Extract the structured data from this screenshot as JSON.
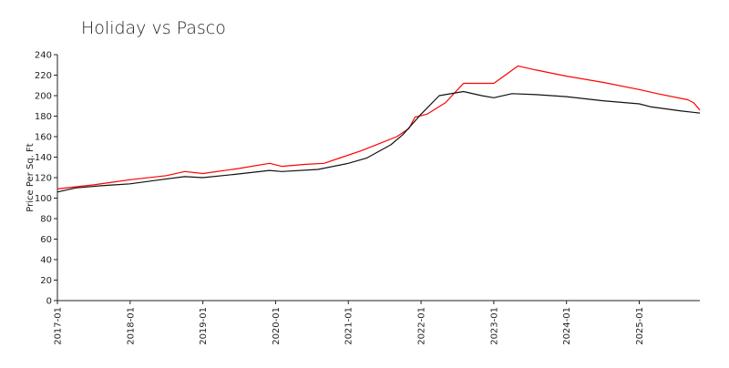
{
  "chart_data": {
    "type": "line",
    "title": "Holiday vs Pasco",
    "xlabel": "",
    "ylabel": "Price Per Sq. Ft",
    "ylim": [
      0,
      240
    ],
    "yticks": [
      0,
      20,
      40,
      60,
      80,
      100,
      120,
      140,
      160,
      180,
      200,
      220,
      240
    ],
    "xticks": [
      "2017-01",
      "2018-01",
      "2019-01",
      "2020-01",
      "2021-01",
      "2022-01",
      "2023-01",
      "2024-01",
      "2025-01"
    ],
    "xlim": [
      "2017-01",
      "2025-11"
    ],
    "grid": false,
    "legend": "none",
    "series": [
      {
        "color": "#ff0000",
        "points": [
          [
            "2017-01",
            109
          ],
          [
            "2017-07",
            113
          ],
          [
            "2018-01",
            118
          ],
          [
            "2018-07",
            122
          ],
          [
            "2018-10",
            126
          ],
          [
            "2019-01",
            124
          ],
          [
            "2019-07",
            129
          ],
          [
            "2019-12",
            134
          ],
          [
            "2020-02",
            131
          ],
          [
            "2020-06",
            133
          ],
          [
            "2020-09",
            134
          ],
          [
            "2020-12",
            140
          ],
          [
            "2021-03",
            146
          ],
          [
            "2021-06",
            153
          ],
          [
            "2021-09",
            160
          ],
          [
            "2021-11",
            168
          ],
          [
            "2021-12",
            179
          ],
          [
            "2022-02",
            182
          ],
          [
            "2022-05",
            193
          ],
          [
            "2022-08",
            212
          ],
          [
            "2023-01",
            212
          ],
          [
            "2023-05",
            229
          ],
          [
            "2023-08",
            225
          ],
          [
            "2024-01",
            219
          ],
          [
            "2024-07",
            213
          ],
          [
            "2025-01",
            206
          ],
          [
            "2025-04",
            202
          ],
          [
            "2025-09",
            196
          ],
          [
            "2025-10",
            193
          ],
          [
            "2025-11",
            186
          ]
        ]
      },
      {
        "color": "#111111",
        "points": [
          [
            "2017-01",
            106
          ],
          [
            "2017-04",
            110
          ],
          [
            "2017-08",
            112
          ],
          [
            "2018-01",
            114
          ],
          [
            "2018-06",
            118
          ],
          [
            "2018-10",
            121
          ],
          [
            "2019-01",
            120
          ],
          [
            "2019-06",
            123
          ],
          [
            "2019-12",
            127
          ],
          [
            "2020-02",
            126
          ],
          [
            "2020-08",
            128
          ],
          [
            "2021-01",
            134
          ],
          [
            "2021-04",
            139
          ],
          [
            "2021-08",
            152
          ],
          [
            "2021-10",
            162
          ],
          [
            "2022-01",
            182
          ],
          [
            "2022-04",
            200
          ],
          [
            "2022-08",
            204
          ],
          [
            "2022-11",
            200
          ],
          [
            "2023-01",
            198
          ],
          [
            "2023-04",
            202
          ],
          [
            "2023-08",
            201
          ],
          [
            "2024-01",
            199
          ],
          [
            "2024-04",
            197
          ],
          [
            "2024-07",
            195
          ],
          [
            "2025-01",
            192
          ],
          [
            "2025-03",
            189
          ],
          [
            "2025-08",
            185
          ],
          [
            "2025-11",
            183
          ]
        ]
      }
    ]
  }
}
